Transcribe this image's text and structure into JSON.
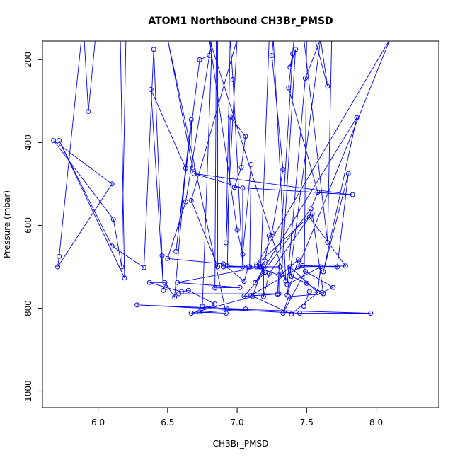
{
  "chart_data": {
    "type": "line",
    "title": "ATOM1 Northbound CH3Br_PMSD",
    "xlabel": "CH3Br_PMSD",
    "ylabel": "Pressure (mbar)",
    "xlim": [
      5.6,
      8.45
    ],
    "ylim": [
      1040,
      155
    ],
    "y_reversed": true,
    "x_ticks": [
      "6.0",
      "6.5",
      "7.0",
      "7.5",
      "8.0"
    ],
    "y_ticks": [
      "200",
      "400",
      "600",
      "800",
      "1000"
    ],
    "grid": false,
    "legend": "none",
    "series_color": "#0000ff",
    "marker": "open-circle",
    "series": [
      {
        "points": [
          [
            5.9,
            150
          ],
          [
            5.93,
            325
          ],
          [
            5.98,
            150
          ],
          [
            5.88,
            150
          ],
          [
            5.72,
            675
          ],
          [
            5.71,
            700
          ],
          [
            6.1,
            500
          ],
          [
            5.68,
            395
          ],
          [
            6.11,
            585
          ],
          [
            6.17,
            700
          ],
          [
            6.2,
            150
          ],
          [
            6.16,
            150
          ],
          [
            6.19,
            727
          ],
          [
            5.72,
            395
          ],
          [
            6.1,
            650
          ],
          [
            6.33,
            702
          ],
          [
            6.4,
            175
          ],
          [
            6.46,
            673
          ],
          [
            6.47,
            757
          ],
          [
            6.38,
            272
          ],
          [
            6.63,
            462
          ],
          [
            6.55,
            773
          ],
          [
            6.48,
            738
          ],
          [
            6.37,
            738
          ],
          [
            6.49,
            750
          ],
          [
            6.6,
            760
          ],
          [
            6.65,
            757
          ],
          [
            6.84,
            790
          ],
          [
            6.73,
            809
          ],
          [
            6.92,
            812
          ],
          [
            6.5,
            150
          ],
          [
            6.68,
            461
          ],
          [
            6.67,
            345
          ],
          [
            6.56,
            663
          ],
          [
            6.73,
            200
          ],
          [
            6.8,
            190
          ],
          [
            6.82,
            150
          ],
          [
            6.63,
            543
          ],
          [
            6.5,
            680
          ],
          [
            6.9,
            693
          ],
          [
            7.05,
            735
          ],
          [
            7.08,
            700
          ],
          [
            7.17,
            700
          ],
          [
            6.57,
            738
          ],
          [
            7.02,
            750
          ],
          [
            6.84,
            751
          ],
          [
            6.85,
            150
          ],
          [
            6.86,
            150
          ],
          [
            6.86,
            700
          ],
          [
            6.67,
            540
          ],
          [
            7.0,
            150
          ],
          [
            6.92,
            642
          ],
          [
            6.95,
            150
          ],
          [
            6.97,
            248
          ],
          [
            7.04,
            700
          ],
          [
            7.04,
            510
          ],
          [
            6.69,
            475
          ],
          [
            7.83,
            526
          ],
          [
            6.98,
            508
          ],
          [
            7.03,
            460
          ],
          [
            7.06,
            385
          ],
          [
            6.95,
            338
          ],
          [
            6.93,
            698
          ],
          [
            7.09,
            700
          ],
          [
            7.1,
            453
          ],
          [
            7.04,
            670
          ],
          [
            7.0,
            611
          ],
          [
            6.8,
            150
          ],
          [
            7.35,
            734
          ],
          [
            7.26,
            150
          ],
          [
            7.25,
            190
          ],
          [
            7.33,
            465
          ],
          [
            7.25,
            618
          ],
          [
            7.23,
            625
          ],
          [
            7.2,
            686
          ],
          [
            7.16,
            700
          ],
          [
            7.2,
            713
          ],
          [
            7.05,
            771
          ],
          [
            7.29,
            766
          ],
          [
            7.4,
            186
          ],
          [
            7.38,
            218
          ],
          [
            7.42,
            175
          ],
          [
            7.32,
            718
          ],
          [
            7.44,
            683
          ],
          [
            7.36,
            768
          ],
          [
            7.6,
            150
          ],
          [
            7.49,
            245
          ],
          [
            7.36,
            743
          ],
          [
            7.6,
            700
          ],
          [
            7.58,
            762
          ],
          [
            7.52,
            760
          ],
          [
            7.48,
            795
          ],
          [
            7.5,
            150
          ],
          [
            7.56,
            150
          ],
          [
            7.65,
            264
          ],
          [
            7.6,
            150
          ],
          [
            7.68,
            150
          ],
          [
            7.65,
            641
          ],
          [
            7.48,
            150
          ],
          [
            7.41,
            150
          ],
          [
            7.37,
            268
          ],
          [
            7.58,
            520
          ],
          [
            7.53,
            560
          ],
          [
            7.13,
            738
          ],
          [
            7.86,
            340
          ],
          [
            7.62,
            712
          ],
          [
            7.8,
            475
          ],
          [
            7.72,
            700
          ],
          [
            7.47,
            697
          ],
          [
            7.1,
            769
          ],
          [
            7.39,
            814
          ],
          [
            7.58,
            762
          ],
          [
            7.38,
            700
          ],
          [
            7.39,
            723
          ],
          [
            7.5,
            740
          ],
          [
            7.61,
            762
          ],
          [
            7.69,
            750
          ],
          [
            7.49,
            711
          ],
          [
            7.33,
            812
          ],
          [
            7.37,
            772
          ],
          [
            7.62,
            765
          ],
          [
            7.54,
            572
          ],
          [
            7.14,
            695
          ],
          [
            8.1,
            150
          ],
          [
            7.44,
            700
          ],
          [
            7.78,
            698
          ],
          [
            7.52,
            580
          ],
          [
            7.23,
            717
          ],
          [
            7.19,
            772
          ],
          [
            7.19,
            698
          ],
          [
            7.11,
            772
          ],
          [
            6.67,
            812
          ],
          [
            7.06,
            802
          ],
          [
            6.28,
            792
          ],
          [
            7.45,
            812
          ],
          [
            7.96,
            812
          ],
          [
            6.93,
            802
          ],
          [
            6.75,
            795
          ],
          [
            6.82,
            150
          ],
          [
            7.23,
            150
          ],
          [
            7.17,
            700
          ],
          [
            6.9,
            700
          ],
          [
            7.31,
            700
          ],
          [
            7.14,
            700
          ],
          [
            7.3,
            720
          ],
          [
            7.3,
            765
          ],
          [
            6.58,
            765
          ]
        ]
      }
    ]
  }
}
